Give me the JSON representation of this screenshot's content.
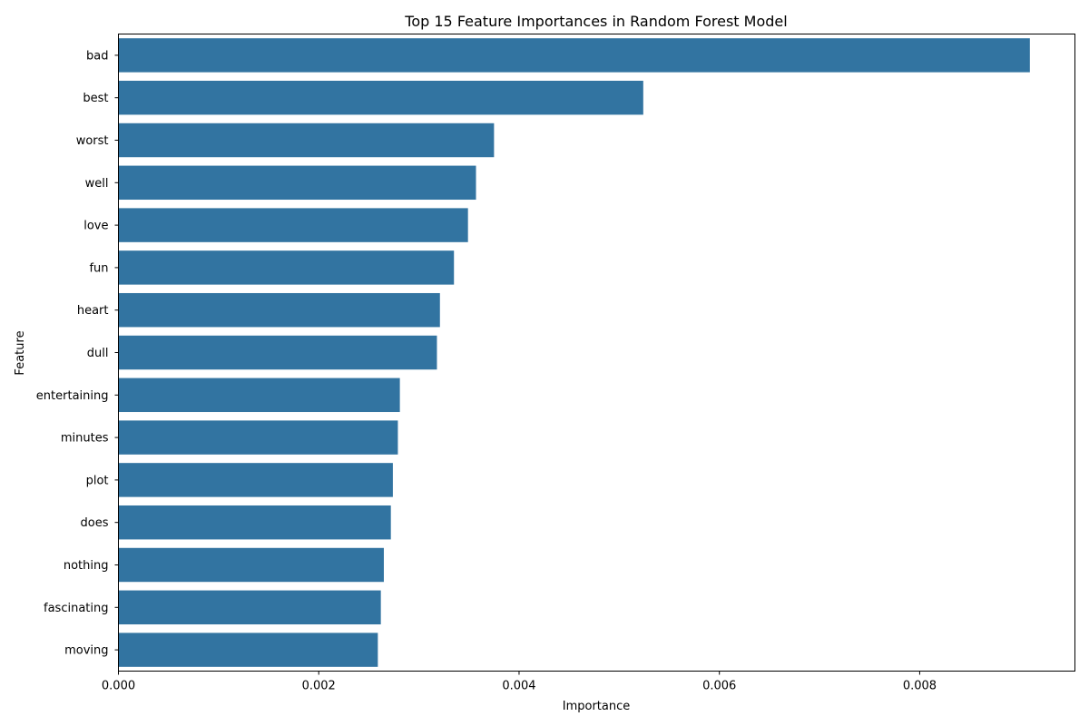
{
  "chart_data": {
    "type": "bar",
    "orientation": "horizontal",
    "title": "Top 15 Feature Importances in Random Forest Model",
    "xlabel": "Importance",
    "ylabel": "Feature",
    "categories": [
      "bad",
      "best",
      "worst",
      "well",
      "love",
      "fun",
      "heart",
      "dull",
      "entertaining",
      "minutes",
      "plot",
      "does",
      "nothing",
      "fascinating",
      "moving"
    ],
    "values": [
      0.0091,
      0.00524,
      0.00375,
      0.00357,
      0.00349,
      0.00335,
      0.00321,
      0.00318,
      0.00281,
      0.00279,
      0.00274,
      0.00272,
      0.00265,
      0.00262,
      0.00259
    ],
    "xlim": [
      0,
      0.00955
    ],
    "xticks": [
      0,
      0.002,
      0.004,
      0.006,
      0.008
    ],
    "xtick_labels": [
      "0.000",
      "0.002",
      "0.004",
      "0.006",
      "0.008"
    ],
    "grid": false,
    "legend": "none",
    "colors": {
      "bar": "#3274a1",
      "axis": "#000000",
      "text": "#000000"
    }
  }
}
